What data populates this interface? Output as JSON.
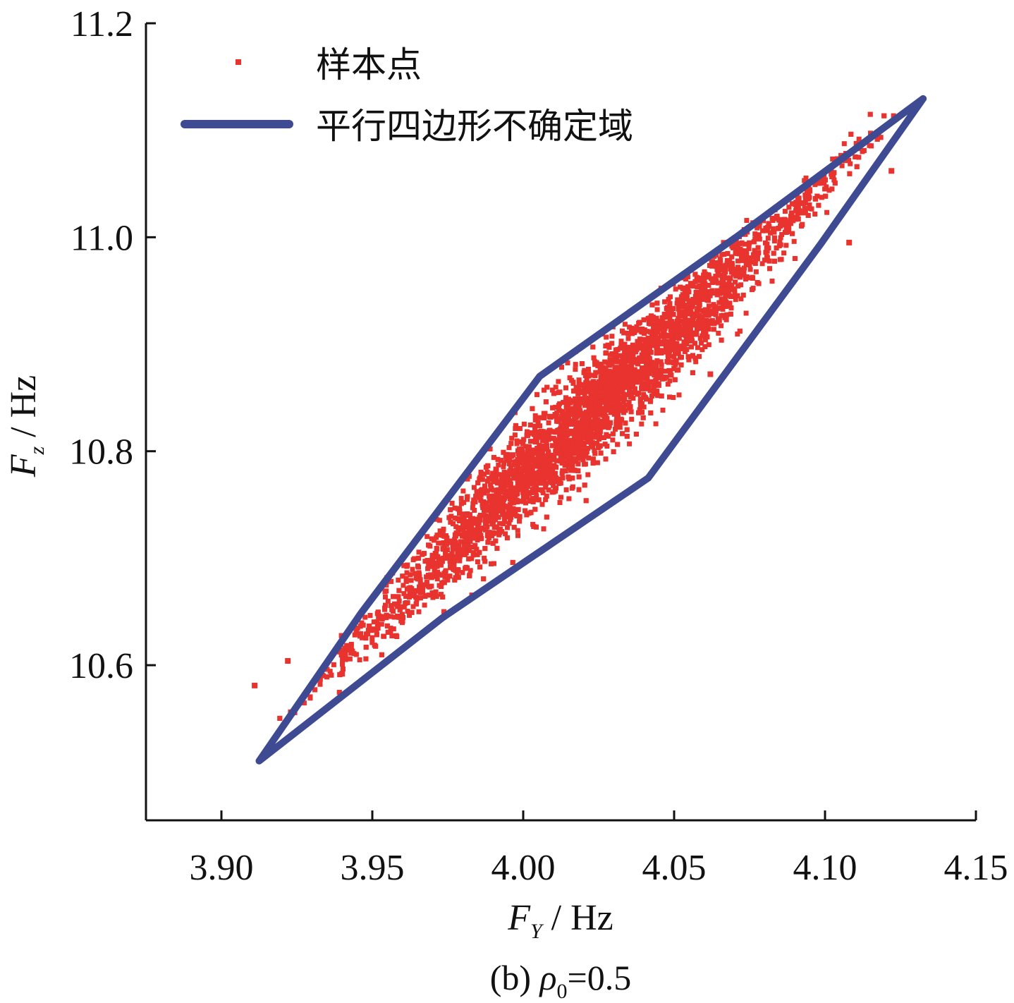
{
  "chart_data": {
    "type": "scatter",
    "caption": "(b) ρ0=0.5",
    "xlabel": "F_Y / Hz",
    "ylabel": "F_z / Hz",
    "xlim": [
      3.875,
      4.15
    ],
    "ylim": [
      10.455,
      11.2
    ],
    "x_ticks": [
      3.9,
      3.95,
      4.0,
      4.05,
      4.1,
      4.15
    ],
    "x_tick_labels": [
      "3.90",
      "3.95",
      "4.00",
      "4.05",
      "4.10",
      "4.15"
    ],
    "y_ticks": [
      10.6,
      10.8,
      11.0,
      11.2
    ],
    "y_tick_labels": [
      "10.6",
      "10.8",
      "11.0",
      "11.2"
    ],
    "grid": false,
    "legend_position": "top-left",
    "series": [
      {
        "name": "样本点",
        "kind": "scatter",
        "color": "#e8332f",
        "distribution": {
          "count": 5000,
          "center": [
            4.0224,
            10.8366
          ],
          "major_axis_end_low": [
            3.9125,
            10.5105
          ],
          "major_axis_end_high": [
            4.1325,
            11.1295
          ],
          "outlier_points": [
            [
              3.911,
              10.581
            ],
            [
              3.922,
              10.604
            ],
            [
              3.94,
              10.592
            ],
            [
              4.107,
              11.078
            ],
            [
              4.122,
              11.062
            ],
            [
              4.108,
              10.995
            ],
            [
              4.062,
              10.872
            ],
            [
              3.923,
              10.556
            ]
          ]
        }
      },
      {
        "name": "平行四边形不确定域",
        "kind": "polygon",
        "color": "#3e4b93",
        "vertices": [
          [
            3.9125,
            10.5105
          ],
          [
            3.9462,
            10.6484
          ],
          [
            4.0055,
            10.8701
          ],
          [
            4.0714,
            11.0018
          ],
          [
            4.1325,
            11.1295
          ],
          [
            4.0986,
            10.9938
          ],
          [
            4.0414,
            10.7749
          ],
          [
            3.9733,
            10.6444
          ],
          [
            3.9125,
            10.5105
          ]
        ]
      }
    ]
  }
}
